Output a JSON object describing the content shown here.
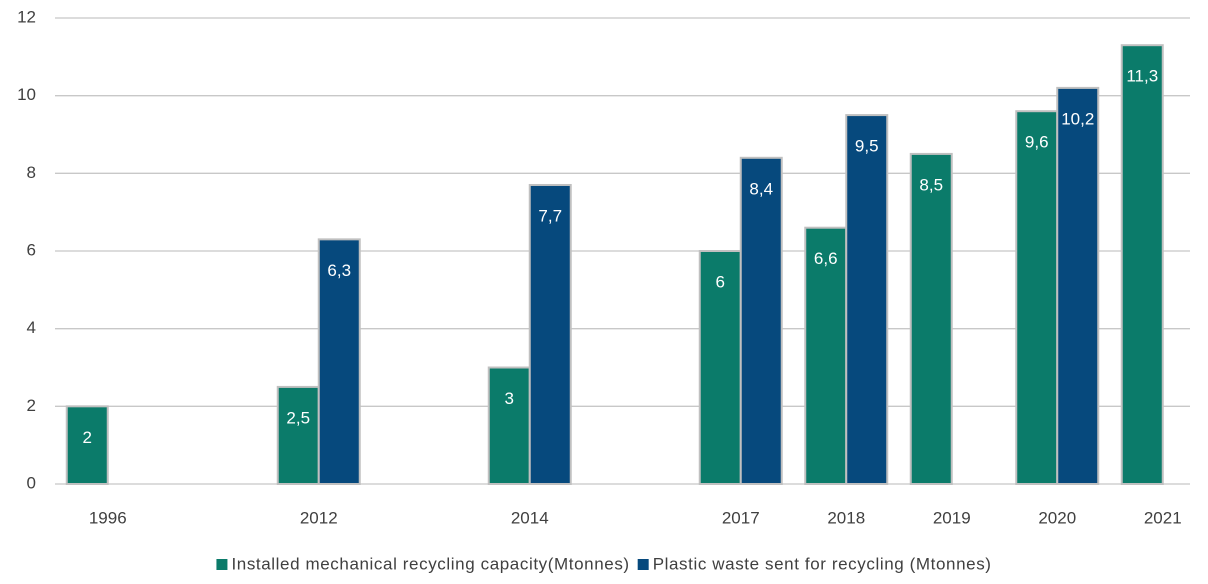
{
  "chart_data": {
    "type": "bar",
    "categories": [
      "1996",
      null,
      "2012",
      null,
      "2014",
      null,
      "2017",
      "2018",
      "2019",
      "2020",
      "2021"
    ],
    "series": [
      {
        "name": "Installed mechanical recycling capacity(Mtonnes)",
        "color": "#0b7b6a",
        "values": [
          2,
          null,
          2.5,
          null,
          3,
          null,
          6,
          6.6,
          8.5,
          9.6,
          11.3
        ],
        "value_labels": [
          "2",
          null,
          "2,5",
          null,
          "3",
          null,
          "6",
          "6,6",
          "8,5",
          "9,6",
          "11,3"
        ]
      },
      {
        "name": "Plastic waste sent for recycling (Mtonnes)",
        "color": "#06497d",
        "values": [
          null,
          null,
          6.3,
          null,
          7.7,
          null,
          8.4,
          9.5,
          null,
          10.2,
          null
        ],
        "value_labels": [
          null,
          null,
          "6,3",
          null,
          "7,7",
          null,
          "8,4",
          "9,5",
          null,
          "10,2",
          null
        ]
      }
    ],
    "ylim": [
      0,
      12
    ],
    "yticks": [
      0,
      2,
      4,
      6,
      8,
      10,
      12
    ],
    "grid": true,
    "legend": "bottom"
  }
}
